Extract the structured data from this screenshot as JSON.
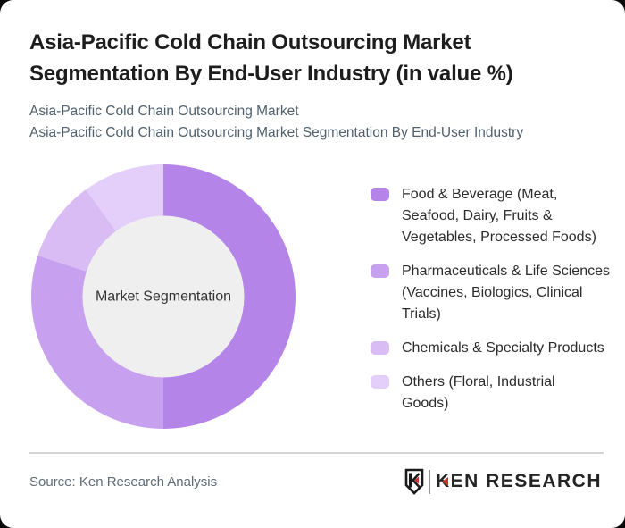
{
  "page": {
    "background": "#0a0a0a",
    "card_background": "#ffffff"
  },
  "header": {
    "title_line1": "Asia-Pacific Cold Chain Outsourcing Market",
    "title_line2": "Segmentation By End-User Industry (in value %)",
    "subtitle_line1": "Asia-Pacific Cold Chain Outsourcing Market",
    "subtitle_line2": "Asia-Pacific Cold Chain Outsourcing Market Segmentation By End-User Industry"
  },
  "chart_data": {
    "type": "pie",
    "subtype": "donut",
    "title": "Asia-Pacific Cold Chain Outsourcing Market Segmentation By End-User Industry (in value %)",
    "unit": "value %",
    "center_label": "Market Segmentation",
    "start_angle_deg": 0,
    "direction": "clockwise",
    "donut_hole_ratio": 0.61,
    "hole_color": "#efefef",
    "legend_position": "right",
    "segments": [
      {
        "label": "Food & Beverage (Meat, Seafood, Dairy, Fruits & Vegetables, Processed Foods)",
        "label_lines": [
          "Food & Beverage (Meat,",
          "Seafood, Dairy, Fruits &",
          "Vegetables, Processed Foods)"
        ],
        "value": 50,
        "color": "#b584e8"
      },
      {
        "label": "Pharmaceuticals & Life Sciences (Vaccines, Biologics, Clinical Trials)",
        "label_lines": [
          "Pharmaceuticals & Life Sciences",
          "(Vaccines, Biologics, Clinical",
          "Trials)"
        ],
        "value": 30,
        "color": "#c7a1ef"
      },
      {
        "label": "Chemicals & Specialty Products",
        "label_lines": [
          "Chemicals & Specialty Products"
        ],
        "value": 10,
        "color": "#d8bcf3"
      },
      {
        "label": "Others (Floral, Industrial Goods)",
        "label_lines": [
          "Others (Floral, Industrial",
          "Goods)"
        ],
        "value": 10,
        "color": "#e3cff9"
      }
    ]
  },
  "footer": {
    "source": "Source: Ken Research Analysis",
    "logo_text": "KEN RESEARCH",
    "logo_red": "#c4372e"
  }
}
